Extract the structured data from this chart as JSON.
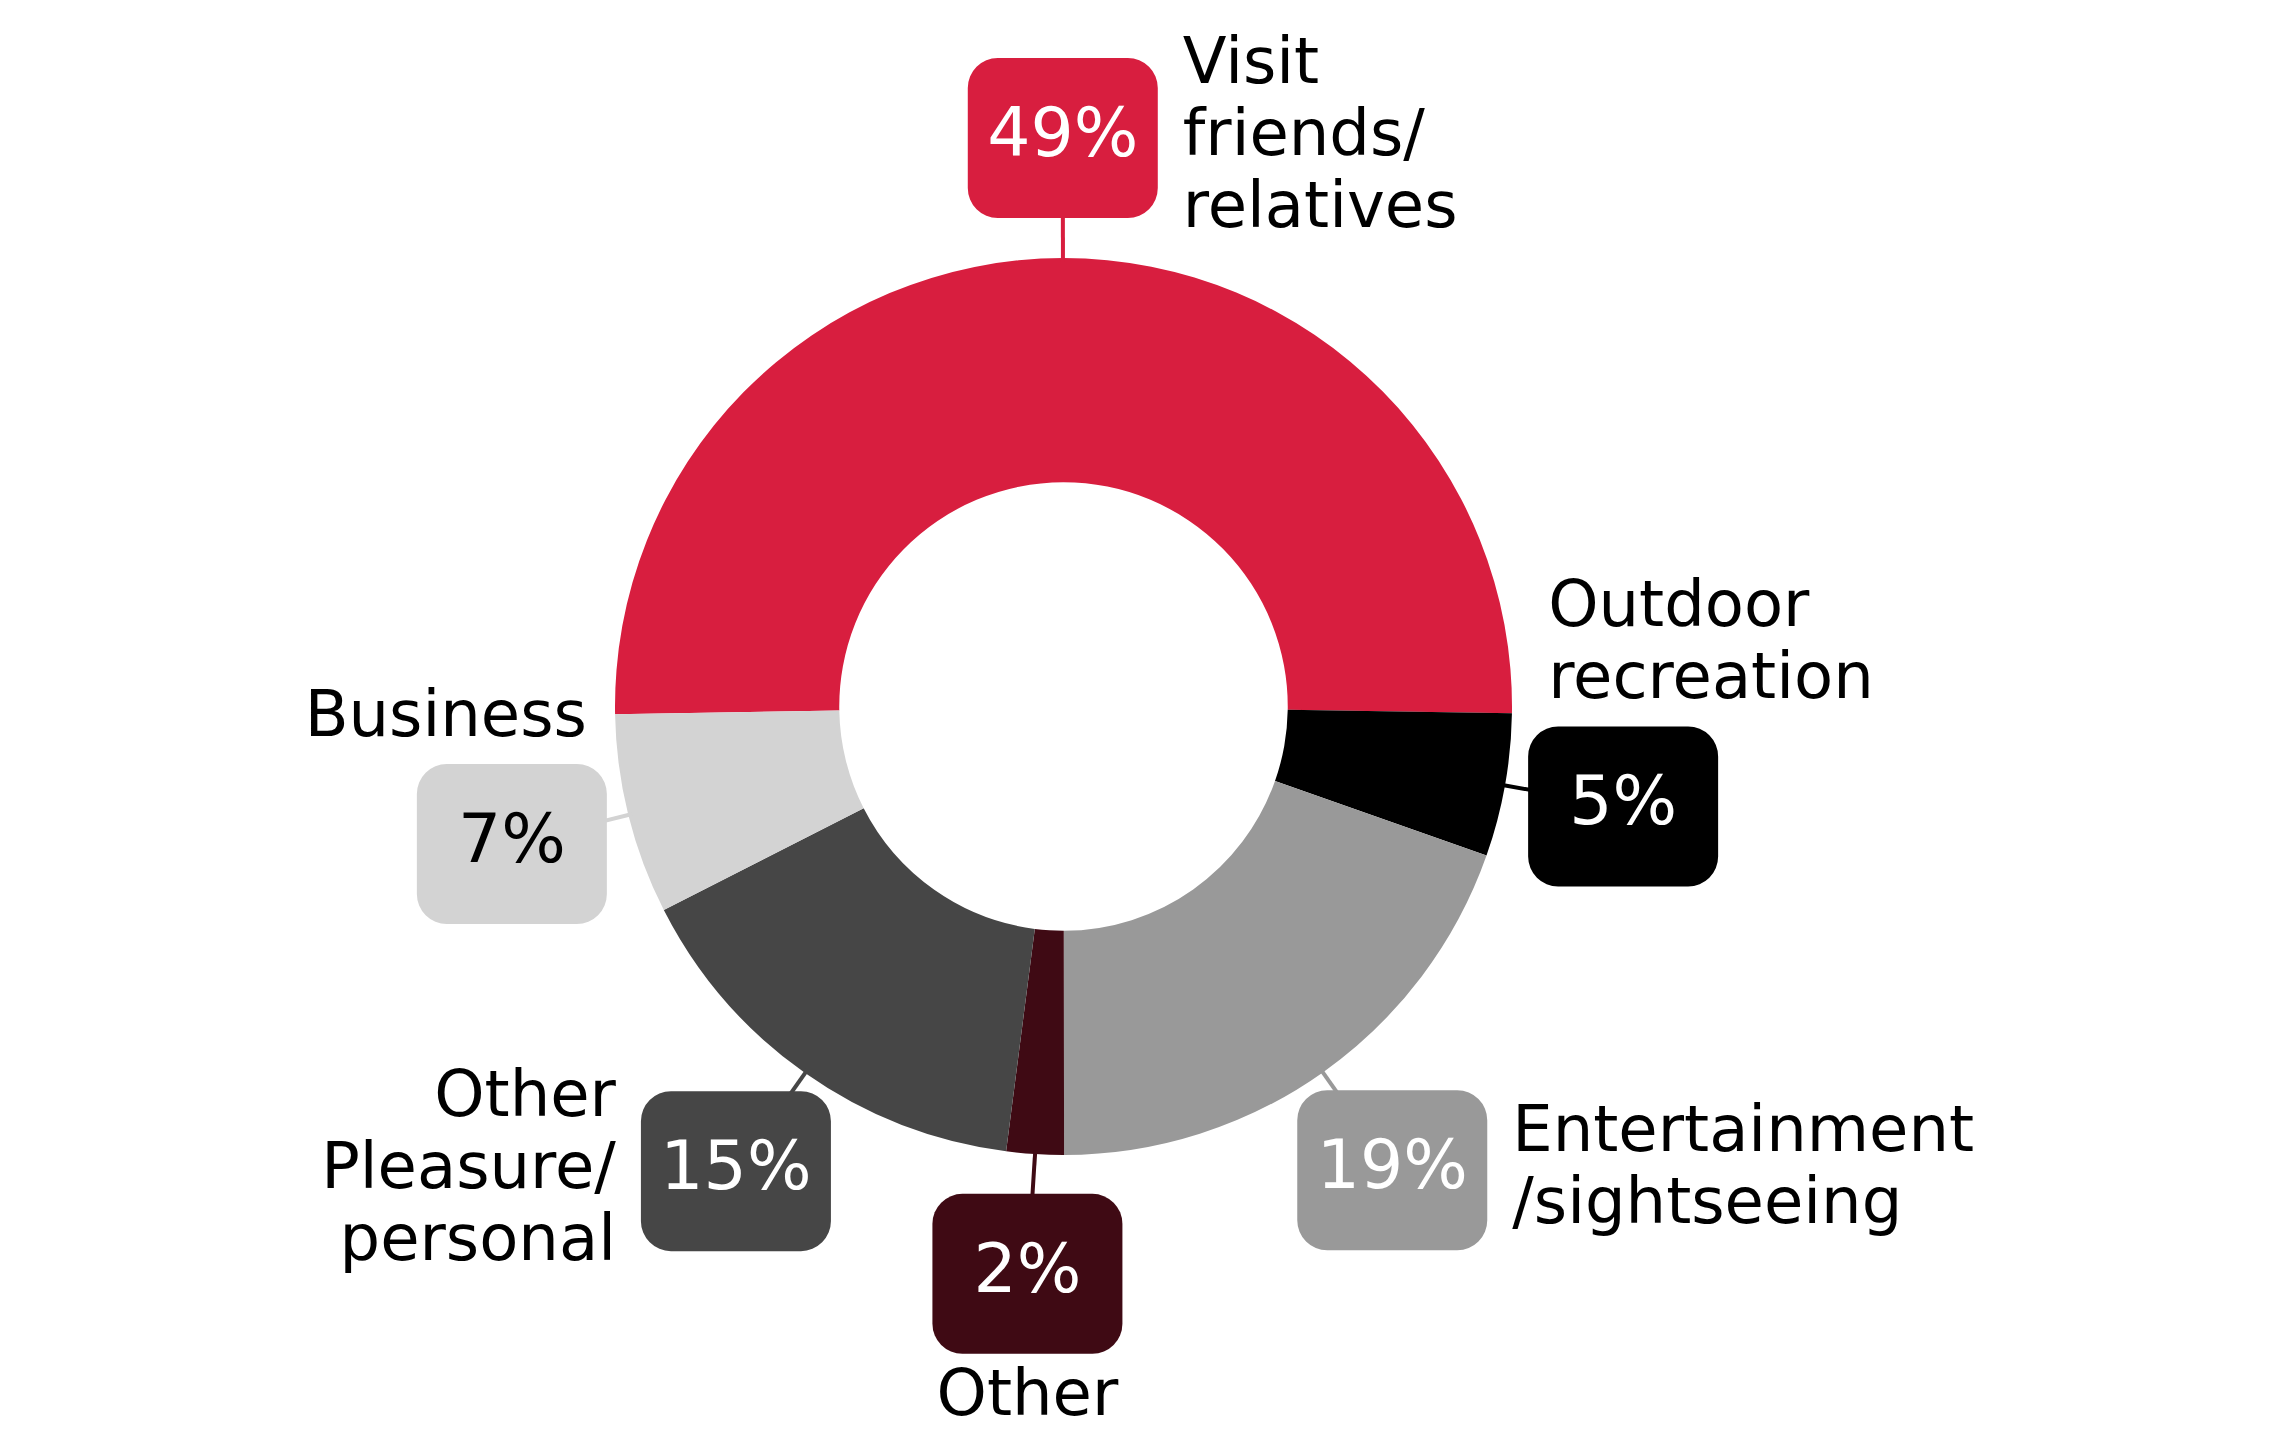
{
  "chart_data": {
    "type": "donut",
    "categories": [
      "Visit friends/relatives",
      "Outdoor recreation",
      "Entertainment /sightseeing",
      "Other",
      "Other Pleasure/personal",
      "Business"
    ],
    "values": [
      49,
      5,
      19,
      2,
      15,
      7
    ],
    "value_labels": [
      "49%",
      "5%",
      "19%",
      "2%",
      "15%",
      "7%"
    ],
    "colors": [
      "#d81e3f",
      "#000000",
      "#999999",
      "#3f0a14",
      "#464646",
      "#d3d3d3"
    ],
    "legend": false
  }
}
